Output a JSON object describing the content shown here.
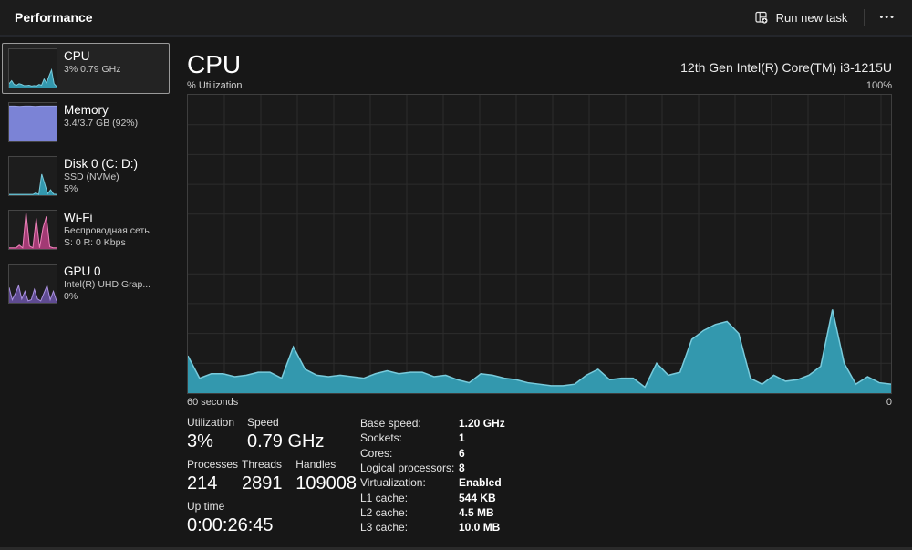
{
  "window": {
    "title": "Performance"
  },
  "topbar": {
    "run_new_task_label": "Run new task",
    "more_icon": "•••"
  },
  "colors": {
    "accent_teal_fill": "#3398ae",
    "accent_teal_stroke": "#79cbdc",
    "memory_fill": "#7b83d6",
    "memory_stroke": "#9ba2ea",
    "wifi_fill": "#a23a74",
    "wifi_stroke": "#ee82ba",
    "gpu_fill": "#5f4b91",
    "gpu_stroke": "#ab92e2",
    "selection_border": "#9a9a9a",
    "grid_line": "#2c2c2c"
  },
  "sidebar": {
    "items": [
      {
        "id": "cpu",
        "name": "CPU",
        "lines": [
          "3% 0.79 GHz"
        ],
        "selected": true,
        "fill": "#3398ae",
        "stroke": "#79cbdc",
        "spark": [
          10,
          18,
          8,
          6,
          10,
          8,
          5,
          5,
          6,
          4,
          5,
          4,
          8,
          6,
          22,
          12,
          30,
          46,
          10,
          3
        ]
      },
      {
        "id": "memory",
        "name": "Memory",
        "lines": [
          "3.4/3.7 GB (92%)"
        ],
        "selected": false,
        "fill": "#7b83d6",
        "stroke": "#9ba2ea",
        "spark": [
          92,
          92,
          91,
          92,
          92,
          91,
          92,
          92,
          92,
          92
        ]
      },
      {
        "id": "disk0",
        "name": "Disk 0 (C: D:)",
        "lines": [
          "SSD (NVMe)",
          "5%"
        ],
        "selected": false,
        "fill": "#3398ae",
        "stroke": "#79cbdc",
        "spark": [
          2,
          2,
          2,
          2,
          2,
          2,
          2,
          2,
          2,
          6,
          2,
          55,
          30,
          4,
          14,
          3,
          2
        ]
      },
      {
        "id": "wifi",
        "name": "Wi-Fi",
        "lines": [
          "Беспроводная сеть",
          "S: 0 R: 0 Kbps"
        ],
        "selected": false,
        "fill": "#a23a74",
        "stroke": "#ee82ba",
        "spark": [
          3,
          3,
          3,
          10,
          3,
          95,
          8,
          3,
          80,
          3,
          55,
          85,
          6,
          3,
          3
        ]
      },
      {
        "id": "gpu0",
        "name": "GPU 0",
        "lines": [
          "Intel(R) UHD Grap...",
          "0%"
        ],
        "selected": false,
        "fill": "#5f4b91",
        "stroke": "#ab92e2",
        "spark": [
          40,
          8,
          25,
          45,
          10,
          30,
          5,
          8,
          35,
          10,
          5,
          25,
          45,
          8,
          30,
          5
        ]
      }
    ]
  },
  "main": {
    "title": "CPU",
    "subtitle": "12th Gen Intel(R) Core(TM) i3-1215U",
    "axis_top_left": "% Utilization",
    "axis_top_right": "100%",
    "axis_bottom_left": "60 seconds",
    "axis_bottom_right": "0",
    "stats": {
      "utilization_label": "Utilization",
      "utilization_value": "3%",
      "speed_label": "Speed",
      "speed_value": "0.79 GHz",
      "processes_label": "Processes",
      "processes_value": "214",
      "threads_label": "Threads",
      "threads_value": "2891",
      "handles_label": "Handles",
      "handles_value": "109008",
      "uptime_label": "Up time",
      "uptime_value": "0:00:26:45"
    },
    "details": [
      {
        "label": "Base speed:",
        "value": "1.20 GHz"
      },
      {
        "label": "Sockets:",
        "value": "1"
      },
      {
        "label": "Cores:",
        "value": "6"
      },
      {
        "label": "Logical processors:",
        "value": "8"
      },
      {
        "label": "Virtualization:",
        "value": "Enabled"
      },
      {
        "label": "L1 cache:",
        "value": "544 KB"
      },
      {
        "label": "L2 cache:",
        "value": "4.5 MB"
      },
      {
        "label": "L3 cache:",
        "value": "10.0 MB"
      }
    ]
  },
  "chart_data": {
    "type": "area",
    "title": "CPU utilization (%) over last 60 seconds",
    "xlabel": "60 seconds → 0",
    "ylabel": "% Utilization",
    "ylim": [
      0,
      100
    ],
    "x_span_seconds": 60,
    "grid": true,
    "legend": "none",
    "values": [
      12.5,
      5,
      6.5,
      6.5,
      5.5,
      6,
      7,
      7,
      5,
      15.5,
      8,
      6,
      5.5,
      6,
      5.5,
      5,
      6.5,
      7.5,
      6.5,
      7,
      7,
      5.5,
      6,
      4.5,
      3.5,
      6.5,
      6,
      5,
      4.5,
      3.5,
      3,
      2.5,
      2.5,
      3,
      6,
      8,
      4.5,
      5,
      5,
      2,
      10,
      6,
      7,
      18,
      21,
      23,
      24,
      20,
      5,
      3,
      6,
      4,
      4.5,
      6,
      9,
      28,
      10,
      3,
      5.5,
      3.5,
      3
    ]
  }
}
